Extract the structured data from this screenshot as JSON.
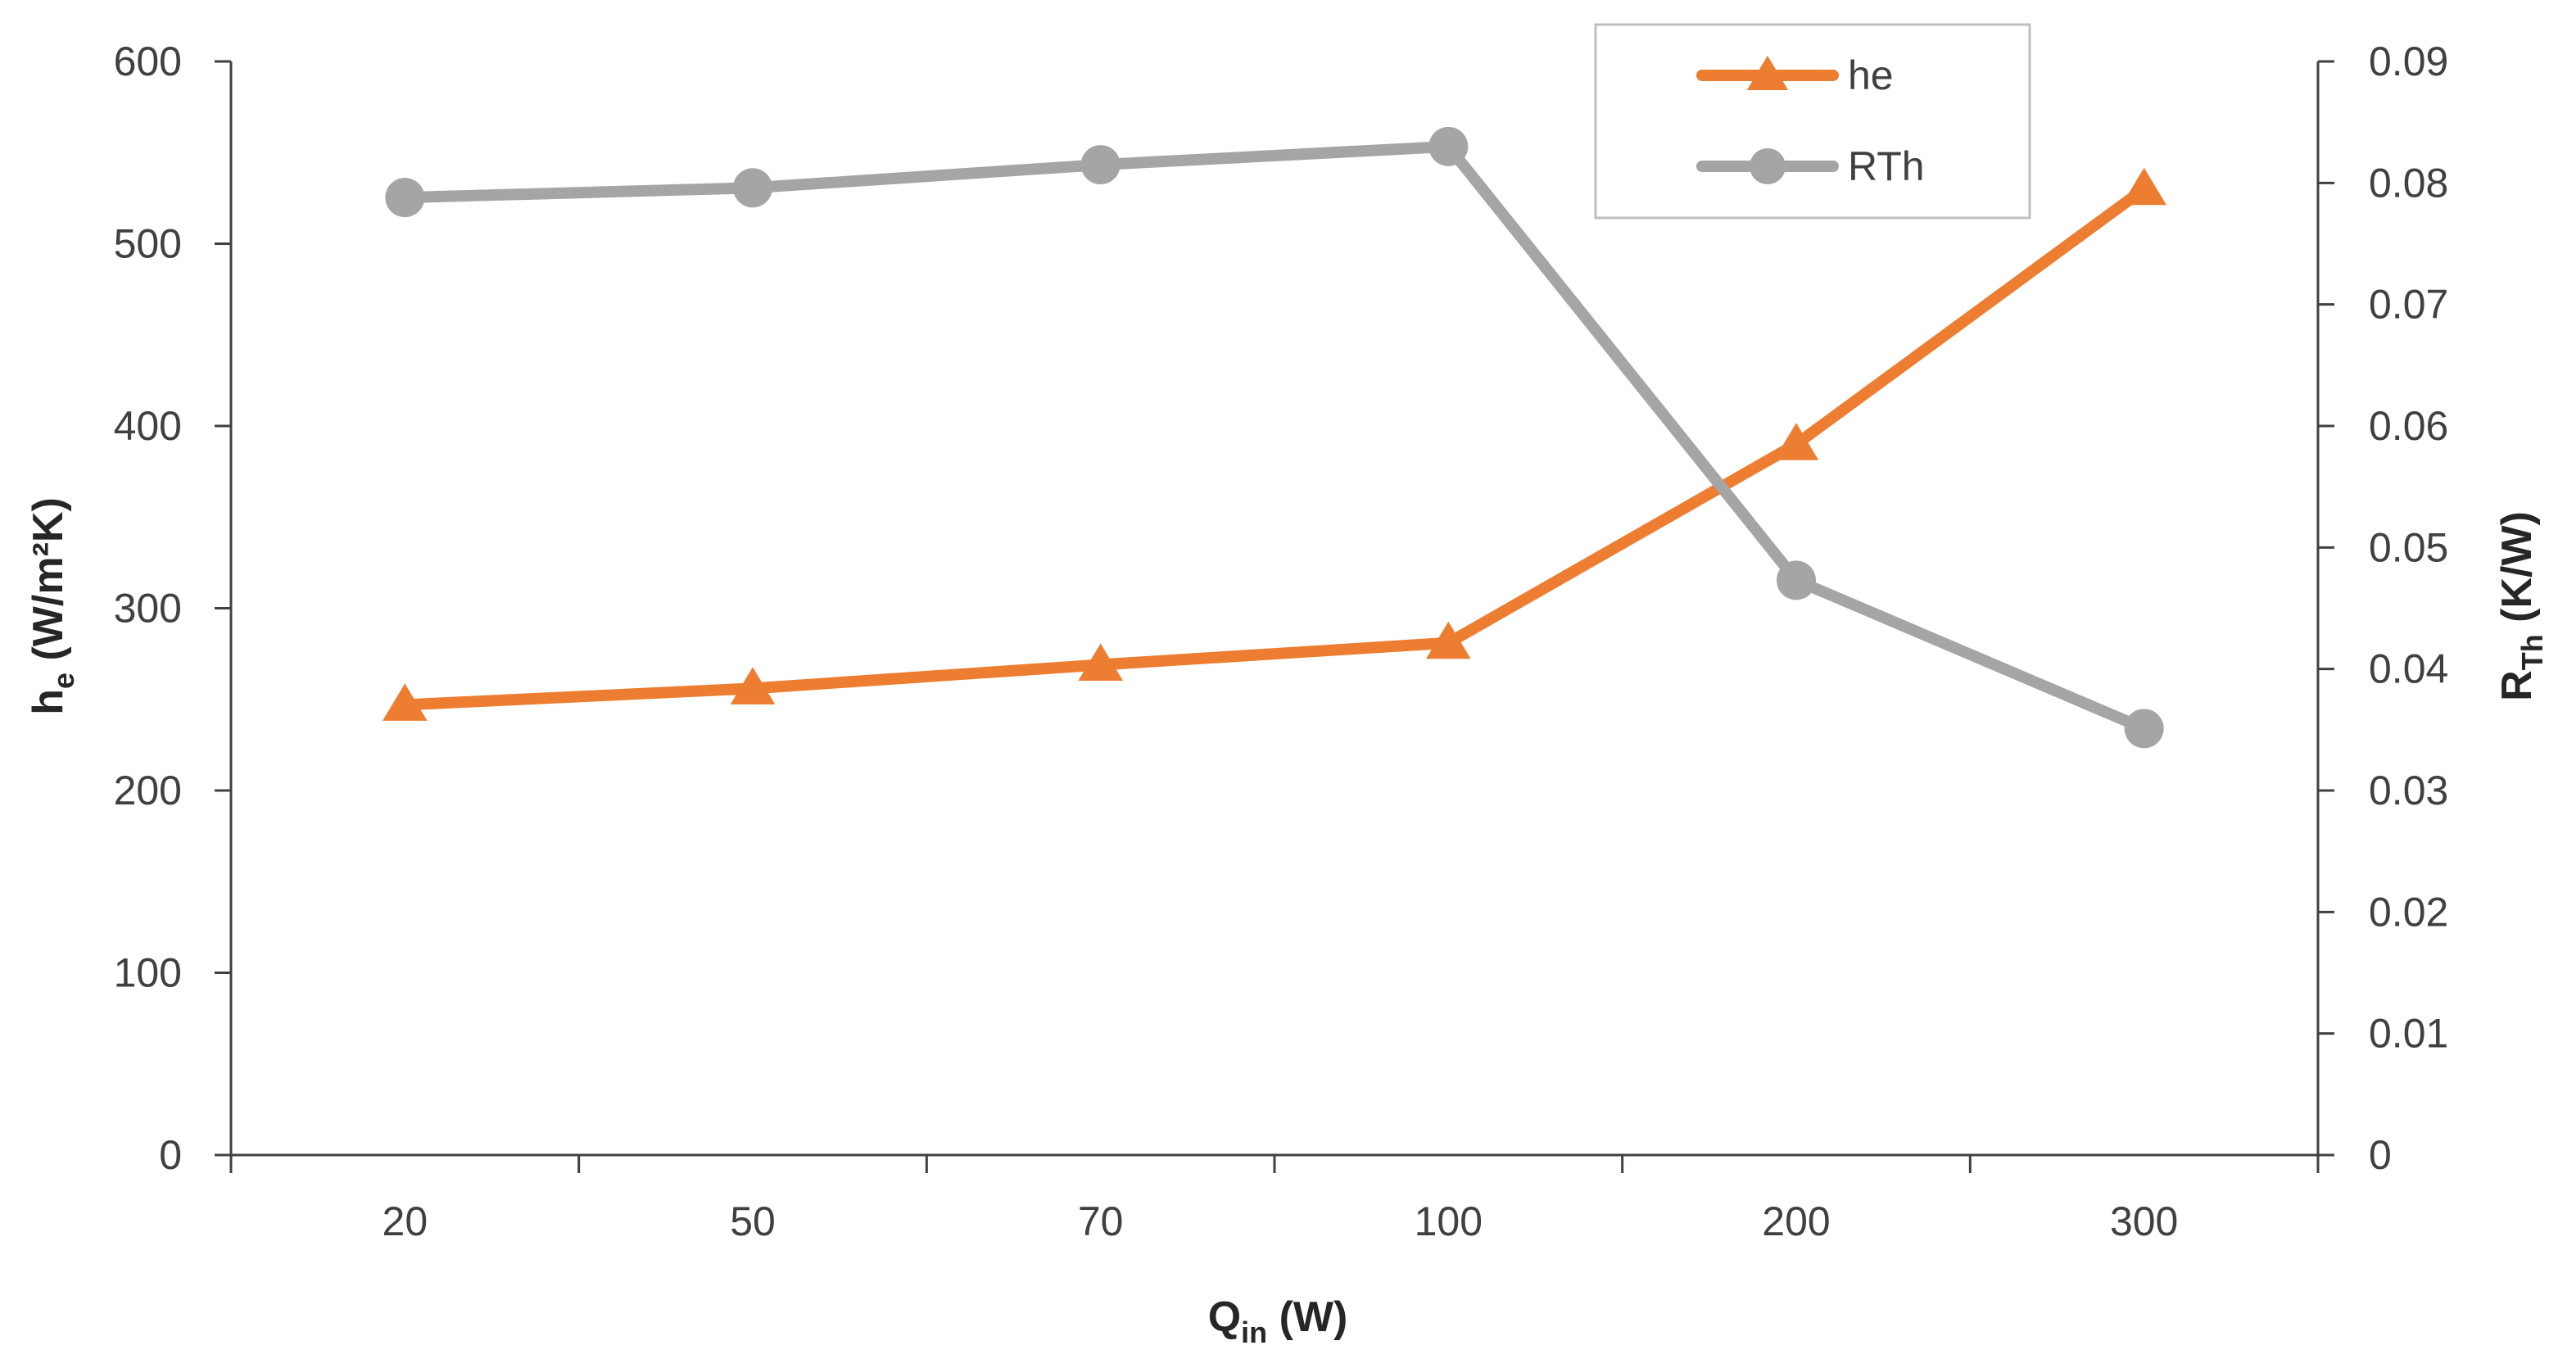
{
  "chart_data": {
    "type": "line",
    "categories": [
      "20",
      "50",
      "70",
      "100",
      "200",
      "300"
    ],
    "series": [
      {
        "name": "he",
        "axis": "left",
        "marker": "triangle",
        "color": "#ED7D31",
        "values": [
          247,
          256,
          269,
          281,
          390,
          530
        ]
      },
      {
        "name": "RTh",
        "axis": "right",
        "marker": "circle",
        "color": "#A5A5A5",
        "values": [
          0.0788,
          0.0796,
          0.0815,
          0.083,
          0.0473,
          0.0351
        ]
      }
    ],
    "x_axis": {
      "title_main": "Q",
      "title_sub": "in",
      "title_rest": " (W)"
    },
    "y_left": {
      "title_main": "h",
      "title_sub": "e",
      "title_rest": " (W/m²K)",
      "ylim": [
        0,
        600
      ],
      "ticks": [
        "0",
        "100",
        "200",
        "300",
        "400",
        "500",
        "600"
      ]
    },
    "y_right": {
      "title_main": "R",
      "title_sub": "Th",
      "title_rest": " (K/W)",
      "ylim": [
        0,
        0.09
      ],
      "ticks": [
        "0",
        "0.01",
        "0.02",
        "0.03",
        "0.04",
        "0.05",
        "0.06",
        "0.07",
        "0.08",
        "0.09"
      ]
    },
    "legend": {
      "position": "top-right",
      "entries": [
        "he",
        "RTh"
      ]
    },
    "grid": false
  }
}
